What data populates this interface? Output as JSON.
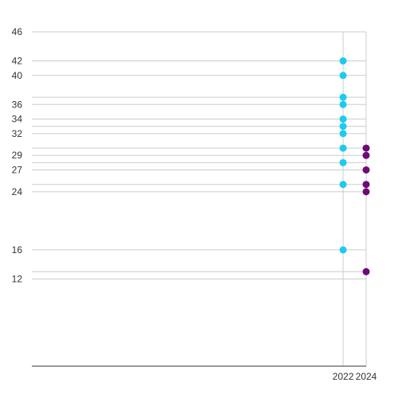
{
  "chart_data": {
    "type": "scatter",
    "title": "",
    "xlabel": "",
    "ylabel": "",
    "xlim": [
      1995,
      2024
    ],
    "ylim": [
      0,
      46
    ],
    "x_ticks": [
      {
        "value": 2022,
        "label": "2022"
      },
      {
        "value": 2024,
        "label": "2024"
      }
    ],
    "y_ticks": [
      {
        "value": 46,
        "label": "46"
      },
      {
        "value": 42,
        "label": "42"
      },
      {
        "value": 40,
        "label": "40"
      },
      {
        "value": 37,
        "label": ""
      },
      {
        "value": 36,
        "label": "36"
      },
      {
        "value": 34,
        "label": "34"
      },
      {
        "value": 33,
        "label": ""
      },
      {
        "value": 32,
        "label": "32"
      },
      {
        "value": 30,
        "label": ""
      },
      {
        "value": 29,
        "label": "29"
      },
      {
        "value": 28,
        "label": ""
      },
      {
        "value": 27,
        "label": "27"
      },
      {
        "value": 25,
        "label": ""
      },
      {
        "value": 24,
        "label": "24"
      },
      {
        "value": 16,
        "label": "16"
      },
      {
        "value": 13,
        "label": ""
      },
      {
        "value": 12,
        "label": "12"
      }
    ],
    "grid": true,
    "series": [
      {
        "color": "#1ccbf0",
        "points": [
          {
            "x": 2022,
            "y": 42
          },
          {
            "x": 2022,
            "y": 40
          },
          {
            "x": 2022,
            "y": 37
          },
          {
            "x": 2022,
            "y": 36
          },
          {
            "x": 2022,
            "y": 34
          },
          {
            "x": 2022,
            "y": 33
          },
          {
            "x": 2022,
            "y": 32
          },
          {
            "x": 2022,
            "y": 30
          },
          {
            "x": 2022,
            "y": 28
          },
          {
            "x": 2022,
            "y": 25
          },
          {
            "x": 2022,
            "y": 16
          }
        ]
      },
      {
        "color": "#6e0a78",
        "points": [
          {
            "x": 2024,
            "y": 30
          },
          {
            "x": 2024,
            "y": 29
          },
          {
            "x": 2024,
            "y": 27
          },
          {
            "x": 2024,
            "y": 25
          },
          {
            "x": 2024,
            "y": 24
          },
          {
            "x": 2024,
            "y": 13
          }
        ]
      }
    ]
  }
}
